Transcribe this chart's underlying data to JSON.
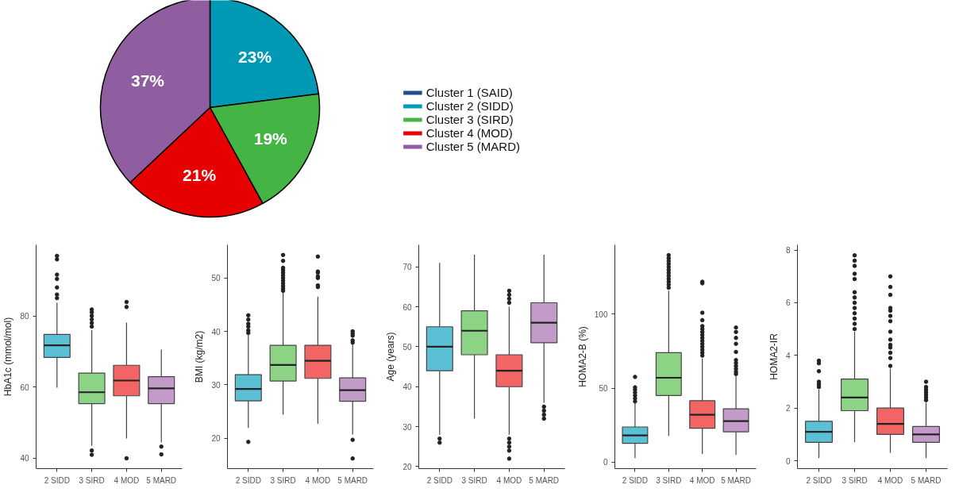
{
  "chart_data": [
    {
      "type": "pie",
      "categories": [
        "Cluster 1 (SAID)",
        "Cluster 2 (SIDD)",
        "Cluster 3 (SIRD)",
        "Cluster 4 (MOD)",
        "Cluster 5 (MARD)"
      ],
      "values": [
        null,
        23,
        19,
        21,
        37
      ],
      "value_labels": [
        null,
        "23%",
        "19%",
        "21%",
        "37%"
      ],
      "colors": [
        "#1f4e8c",
        "#0099b5",
        "#44b445",
        "#e60000",
        "#8f5ea1"
      ],
      "legend": "right"
    },
    {
      "type": "box",
      "categories": [
        "2 SIDD",
        "3 SIRD",
        "4 MOD",
        "5 MARD"
      ],
      "ylabel": "HbA1c (mmol/mol)",
      "ylim": [
        37,
        100
      ],
      "yticks": [
        40,
        60,
        80
      ],
      "colors": [
        "#5bc0d3",
        "#8cd386",
        "#f36464",
        "#c39bc8"
      ],
      "boxes": [
        {
          "low": 59.8,
          "q1": 68.3,
          "median": 71.7,
          "q3": 74.8,
          "high": 83.7,
          "outliers": [
            85,
            86,
            88,
            90.4,
            91.6,
            95.9,
            96.9
          ]
        },
        {
          "low": 43.4,
          "q1": 55.3,
          "median": 58.5,
          "q3": 63.9,
          "high": 76,
          "outliers": [
            77,
            78,
            79,
            80,
            81,
            81.8,
            42.1,
            40.9
          ]
        },
        {
          "low": 45.5,
          "q1": 57.5,
          "median": 61.8,
          "q3": 66.1,
          "high": 78.1,
          "outliers": [
            82.5,
            83.9,
            39.9
          ]
        },
        {
          "low": 44.4,
          "q1": 55.3,
          "median": 59.6,
          "q3": 62.9,
          "high": 70.5,
          "outliers": [
            43.2,
            41
          ]
        }
      ]
    },
    {
      "type": "box",
      "categories": [
        "2 SIDD",
        "3 SIRD",
        "4 MOD",
        "5 MARD"
      ],
      "ylabel": "BMI (kg/m2)",
      "ylim": [
        14.3,
        56.2
      ],
      "yticks": [
        20,
        30,
        40,
        50
      ],
      "colors": [
        "#5bc0d3",
        "#8cd386",
        "#f36464",
        "#c39bc8"
      ],
      "boxes": [
        {
          "low": 21.9,
          "q1": 27.0,
          "median": 29.2,
          "q3": 31.9,
          "high": 39.3,
          "outliers": [
            19.3,
            39.7,
            40.2,
            40.9,
            41.4,
            42.2,
            43
          ]
        },
        {
          "low": 24.4,
          "q1": 30.7,
          "median": 33.7,
          "q3": 37.4,
          "high": 47.2,
          "outliers": [
            47.6,
            48,
            48.5,
            49,
            49.5,
            50,
            50.5,
            51,
            51.5,
            51.9,
            53.2,
            54.3
          ]
        },
        {
          "low": 22.7,
          "q1": 31.2,
          "median": 34.5,
          "q3": 37.4,
          "high": 46.5,
          "outliers": [
            48.3,
            48.6,
            50,
            50.3,
            51,
            51.2,
            54
          ]
        },
        {
          "low": 20.7,
          "q1": 26.9,
          "median": 29,
          "q3": 31.3,
          "high": 37.6,
          "outliers": [
            16.2,
            19.7,
            37.9,
            38.3,
            39.2,
            39.6,
            40
          ]
        }
      ]
    },
    {
      "type": "box",
      "categories": [
        "2 SIDD",
        "3 SIRD",
        "4 MOD",
        "5 MARD"
      ],
      "ylabel": "Age (years)",
      "ylim": [
        19.5,
        75.5
      ],
      "yticks": [
        20,
        30,
        40,
        50,
        60,
        70
      ],
      "colors": [
        "#5bc0d3",
        "#8cd386",
        "#f36464",
        "#c39bc8"
      ],
      "boxes": [
        {
          "low": 28,
          "q1": 44,
          "median": 50,
          "q3": 55,
          "high": 71,
          "outliers": [
            27,
            26
          ]
        },
        {
          "low": 32,
          "q1": 48,
          "median": 54,
          "q3": 59,
          "high": 73
        },
        {
          "low": 28,
          "q1": 40,
          "median": 44,
          "q3": 48,
          "high": 60,
          "outliers": [
            61,
            62,
            63,
            64,
            27,
            26,
            25,
            24,
            22
          ]
        },
        {
          "low": 36,
          "q1": 51,
          "median": 56,
          "q3": 61,
          "high": 73,
          "outliers": [
            35,
            34,
            33,
            32
          ]
        }
      ]
    },
    {
      "type": "box",
      "categories": [
        "2 SIDD",
        "3 SIRD",
        "4 MOD",
        "5 MARD"
      ],
      "ylabel": "HOMA2-B (%)",
      "ylim": [
        -4.5,
        147
      ],
      "yticks": [
        0,
        50,
        100
      ],
      "colors": [
        "#5bc0d3",
        "#8cd386",
        "#f36464",
        "#c39bc8"
      ],
      "boxes": [
        {
          "low": 2.6,
          "q1": 12.6,
          "median": 18,
          "q3": 23.7,
          "high": 40,
          "outliers": [
            41,
            43,
            45,
            47,
            49,
            50.5,
            57.6
          ]
        },
        {
          "low": 17.6,
          "q1": 45,
          "median": 57,
          "q3": 74,
          "high": 116,
          "outliers": [
            118,
            120,
            122,
            124,
            126,
            128,
            130,
            132,
            134,
            136,
            138,
            140
          ]
        },
        {
          "low": 5.5,
          "q1": 22.8,
          "median": 32,
          "q3": 41.5,
          "high": 70,
          "outliers": [
            72,
            74,
            76,
            78,
            80,
            82,
            84,
            86,
            88,
            90,
            92,
            96,
            101,
            121,
            122
          ]
        },
        {
          "low": 4.8,
          "q1": 20.4,
          "median": 27.7,
          "q3": 36,
          "high": 58,
          "outliers": [
            59.5,
            61,
            63,
            65,
            67,
            69,
            74.5,
            80,
            84,
            88,
            91
          ]
        }
      ]
    },
    {
      "type": "box",
      "categories": [
        "2 SIDD",
        "3 SIRD",
        "4 MOD",
        "5 MARD"
      ],
      "ylabel": "HOMA2-IR",
      "ylim": [
        -0.3,
        8.2
      ],
      "yticks": [
        0,
        2,
        4,
        6,
        8
      ],
      "colors": [
        "#5bc0d3",
        "#8cd386",
        "#f36464",
        "#c39bc8"
      ],
      "boxes": [
        {
          "low": 0.1,
          "q1": 0.7,
          "median": 1.1,
          "q3": 1.5,
          "high": 2.7,
          "outliers": [
            2.8,
            2.9,
            3.0,
            3.4,
            3.7,
            3.8
          ]
        },
        {
          "low": 0.7,
          "q1": 1.9,
          "median": 2.4,
          "q3": 3.1,
          "high": 4.9,
          "outliers": [
            5.0,
            5.2,
            5.4,
            5.6,
            5.8,
            6.0,
            6.2,
            6.4,
            6.9,
            7.1,
            7.4,
            7.6,
            7.8
          ]
        },
        {
          "low": 0.3,
          "q1": 1.0,
          "median": 1.4,
          "q3": 2.0,
          "high": 3.5,
          "outliers": [
            3.6,
            3.9,
            4.1,
            4.3,
            4.4,
            4.6,
            4.9,
            5.3,
            5.5,
            5.7,
            5.8,
            6.3,
            6.6,
            7.0
          ]
        },
        {
          "low": 0.1,
          "q1": 0.7,
          "median": 1.0,
          "q3": 1.3,
          "high": 2.2,
          "outliers": [
            2.3,
            2.4,
            2.5,
            2.6,
            2.7,
            2.8,
            3.0
          ]
        }
      ]
    }
  ]
}
